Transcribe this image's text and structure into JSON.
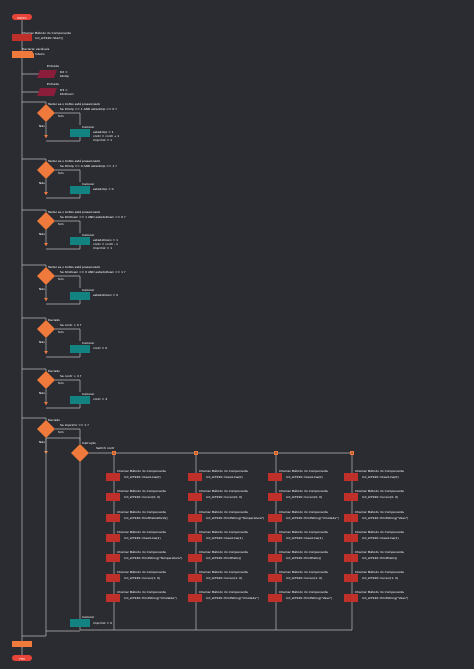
{
  "colors": {
    "background": "#2b2c31",
    "line": "#b8b8b8",
    "start": "#e8443a",
    "red_block": "#c0302a",
    "orange": "#f07a3c",
    "diamond": "#f07a3c",
    "teal": "#138381",
    "io": "#8a1e3a",
    "text": "#ffffff"
  },
  "start": {
    "label": "INICIO"
  },
  "end": {
    "label": "FIM"
  },
  "init_block": {
    "caption": "Chamar Método do Componente",
    "text": "lcd_st7920::Start()"
  },
  "vars_block": {
    "caption": "Declarar variáveis",
    "text": "Inteiro"
  },
  "io_blocks": [
    {
      "caption": "Entrada",
      "lines": [
        "D2 =",
        "btnUp"
      ]
    },
    {
      "caption": "Entrada",
      "lines": [
        "D3 =",
        "btnDown"
      ]
    }
  ],
  "decisions": [
    {
      "caption": "Testar se o botão está pressionado",
      "condition": "Se btnUp == 1 AND estadoUp == 0 ?",
      "yes": "Sim",
      "no": "Não",
      "assign": {
        "caption": "Calcular",
        "lines": [
          "estadoUp = 1",
          "contr = contr + 1",
          "imprimir = 1"
        ]
      }
    },
    {
      "caption": "Testar se o botão está pressionado",
      "condition": "Se btnUp == 0 AND estadoUp == 1 ?",
      "yes": "Sim",
      "no": "Não",
      "assign": {
        "caption": "Calcular",
        "lines": [
          "estadoUp = 0"
        ]
      }
    },
    {
      "caption": "Testar se o botão está pressionado",
      "condition": "Se btnDown == 1 AND estadoDown == 0 ?",
      "yes": "Sim",
      "no": "Não",
      "assign": {
        "caption": "Calcular",
        "lines": [
          "estadoDown = 1",
          "contr = contr - 1",
          "imprimir = 1"
        ]
      }
    },
    {
      "caption": "Testar se o botão está pressionado",
      "condition": "Se btnDown == 0 AND estadoDown == 1 ?",
      "yes": "Sim",
      "no": "Não",
      "assign": {
        "caption": "Calcular",
        "lines": [
          "estadoDown = 0"
        ]
      }
    },
    {
      "caption": "Decisão",
      "condition": "Se contr < 0 ?",
      "yes": "Sim",
      "no": "Não",
      "assign": {
        "caption": "Calcular",
        "lines": [
          "contr = 0"
        ]
      }
    },
    {
      "caption": "Decisão",
      "condition": "Se contr > 4 ?",
      "yes": "Sim",
      "no": "Não",
      "assign": {
        "caption": "Calcular",
        "lines": [
          "contr = 4"
        ]
      }
    },
    {
      "caption": "Decisão",
      "condition": "Se imprimir == 1 ?",
      "yes": "Sim",
      "no": "Não"
    }
  ],
  "switch": {
    "caption": "Instrução",
    "text": "Switch contr"
  },
  "switch_cases": [
    {
      "label": "1",
      "blocks": [
        {
          "caption": "Chamar Método do Componente",
          "text": "lcd_st7920::ClearLine(0)"
        },
        {
          "caption": "Chamar Método do Componente",
          "text": "lcd_st7920::Cursor(0, 0)"
        },
        {
          "caption": "Chamar Método do Componente",
          "text": "lcd_st7920::PrintHelloWorld()"
        },
        {
          "caption": "Chamar Método do Componente",
          "text": "lcd_st7920::ClearLine(1)"
        },
        {
          "caption": "Chamar Método do Componente",
          "text": "lcd_st7920::PrintString(\"Temperatura\")"
        },
        {
          "caption": "Chamar Método do Componente",
          "text": "lcd_st7920::Cursor(1, 0)"
        },
        {
          "caption": "Chamar Método do Componente",
          "text": "lcd_st7920::PrintString(\"Umidade\")"
        }
      ]
    },
    {
      "label": "2",
      "blocks": [
        {
          "caption": "Chamar Método do Componente",
          "text": "lcd_st7920::ClearLine(0)"
        },
        {
          "caption": "Chamar Método do Componente",
          "text": "lcd_st7920::Cursor(0, 0)"
        },
        {
          "caption": "Chamar Método do Componente",
          "text": "lcd_st7920::PrintString(\"Temperatura\")"
        },
        {
          "caption": "Chamar Método do Componente",
          "text": "lcd_st7920::ClearLine(1)"
        },
        {
          "caption": "Chamar Método do Componente",
          "text": "lcd_st7920::PrintHello()"
        },
        {
          "caption": "Chamar Método do Componente",
          "text": "lcd_st7920::Cursor(1, 0)"
        },
        {
          "caption": "Chamar Método do Componente",
          "text": "lcd_st7920::PrintString(\"Umidade\")"
        }
      ]
    },
    {
      "label": "3",
      "blocks": [
        {
          "caption": "Chamar Método do Componente",
          "text": "lcd_st7920::ClearLine(0)"
        },
        {
          "caption": "Chamar Método do Componente",
          "text": "lcd_st7920::Cursor(0, 0)"
        },
        {
          "caption": "Chamar Método do Componente",
          "text": "lcd_st7920::PrintString(\"Umidade\")"
        },
        {
          "caption": "Chamar Método do Componente",
          "text": "lcd_st7920::ClearLine(1)"
        },
        {
          "caption": "Chamar Método do Componente",
          "text": "lcd_st7920::PrintHello()"
        },
        {
          "caption": "Chamar Método do Componente",
          "text": "lcd_st7920::Cursor(1, 0)"
        },
        {
          "caption": "Chamar Método do Componente",
          "text": "lcd_st7920::PrintString(\"Vaso\")"
        }
      ]
    },
    {
      "label": "4",
      "blocks": [
        {
          "caption": "Chamar Método do Componente",
          "text": "lcd_st7920::ClearLine(0)"
        },
        {
          "caption": "Chamar Método do Componente",
          "text": "lcd_st7920::Cursor(0, 0)"
        },
        {
          "caption": "Chamar Método do Componente",
          "text": "lcd_st7920::PrintString(\"Vaso\")"
        },
        {
          "caption": "Chamar Método do Componente",
          "text": "lcd_st7920::ClearLine(1)"
        },
        {
          "caption": "Chamar Método do Componente",
          "text": "lcd_st7920::PrintHello()"
        },
        {
          "caption": "Chamar Método do Componente",
          "text": "lcd_st7920::Cursor(1, 0)"
        },
        {
          "caption": "Chamar Método do Componente",
          "text": "lcd_st7920::PrintString(\"Vaso\")"
        }
      ]
    }
  ],
  "final_assign": {
    "caption": "Calcular",
    "lines": [
      "imprimir = 0"
    ]
  }
}
